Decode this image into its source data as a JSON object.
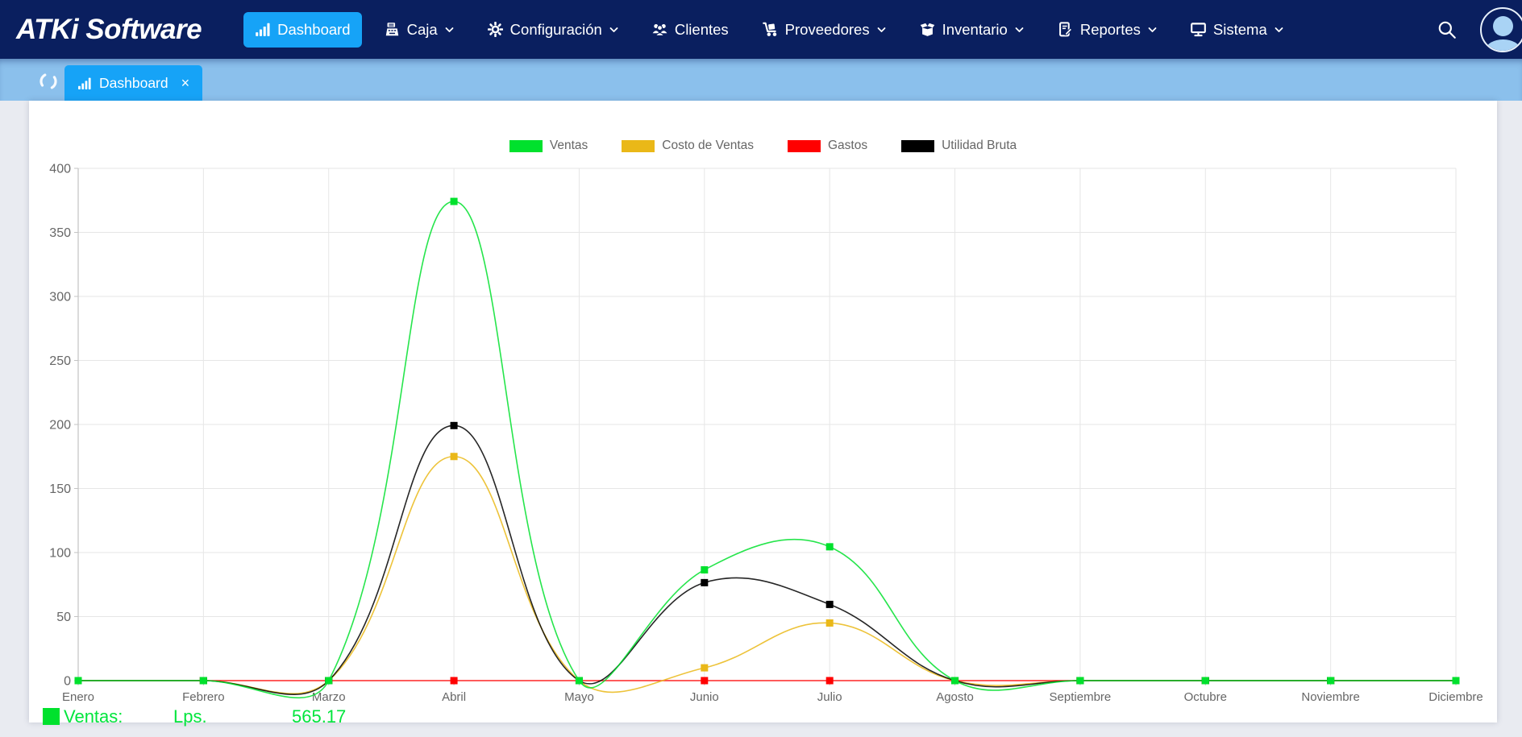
{
  "navbar": {
    "logo": "ATKi Software",
    "items": [
      {
        "label": "Dashboard",
        "icon": "bar-chart-icon",
        "active": true,
        "dropdown": false
      },
      {
        "label": "Caja",
        "icon": "cash-register-icon",
        "active": false,
        "dropdown": true
      },
      {
        "label": "Configuración",
        "icon": "gear-icon",
        "active": false,
        "dropdown": true
      },
      {
        "label": "Clientes",
        "icon": "users-icon",
        "active": false,
        "dropdown": false
      },
      {
        "label": "Proveedores",
        "icon": "dolly-icon",
        "active": false,
        "dropdown": true
      },
      {
        "label": "Inventario",
        "icon": "box-open-icon",
        "active": false,
        "dropdown": true
      },
      {
        "label": "Reportes",
        "icon": "report-icon",
        "active": false,
        "dropdown": true
      },
      {
        "label": "Sistema",
        "icon": "desktop-icon",
        "active": false,
        "dropdown": true
      }
    ],
    "search_icon": "search-icon",
    "avatar_icon": "user-avatar-icon"
  },
  "tabbar": {
    "active_tab": {
      "label": "Dashboard",
      "icon": "bar-chart-icon",
      "close_label": "×"
    },
    "spinner": "loading-spinner"
  },
  "chart_data": {
    "type": "line",
    "title": "",
    "categories": [
      "Enero",
      "Febrero",
      "Marzo",
      "Abril",
      "Mayo",
      "Junio",
      "Julio",
      "Agosto",
      "Septiembre",
      "Octubre",
      "Noviembre",
      "Diciembre"
    ],
    "series": [
      {
        "name": "Ventas",
        "color": "#00e12d",
        "values": [
          0,
          0,
          0,
          374.17,
          0,
          86.5,
          104.5,
          0,
          0,
          0,
          0,
          0
        ]
      },
      {
        "name": "Costo de Ventas",
        "color": "#eab818",
        "values": [
          0,
          0,
          0,
          175,
          0,
          10,
          45,
          0,
          0,
          0,
          0,
          0
        ]
      },
      {
        "name": "Gastos",
        "color": "#ff0000",
        "values": [
          0,
          0,
          0,
          0,
          0,
          0,
          0,
          0,
          0,
          0,
          0,
          0
        ]
      },
      {
        "name": "Utilidad Bruta",
        "color": "#000000",
        "values": [
          0,
          0,
          0,
          199.17,
          0,
          76.5,
          59.5,
          0,
          0,
          0,
          0,
          0
        ]
      }
    ],
    "draw_order": [
      2,
      1,
      3,
      0
    ],
    "ylim": [
      0,
      400
    ],
    "ytick_step": 50,
    "grid": true,
    "legend_position": "top",
    "line_tension": 0.4
  },
  "summary_row": {
    "label": "Ventas:",
    "currency": "Lps.",
    "value": "565.17",
    "color": "#00e53c"
  },
  "colors": {
    "navbar_bg": "#0a1f5f",
    "accent_blue": "#16a3f7",
    "tabstrip_bg": "#8bc0ec",
    "card_bg": "#ffffff",
    "page_bg": "#e9ebf1",
    "grid_line": "#e6e6e6",
    "axis_line": "#c3c3c3",
    "tick_text": "#666666"
  }
}
